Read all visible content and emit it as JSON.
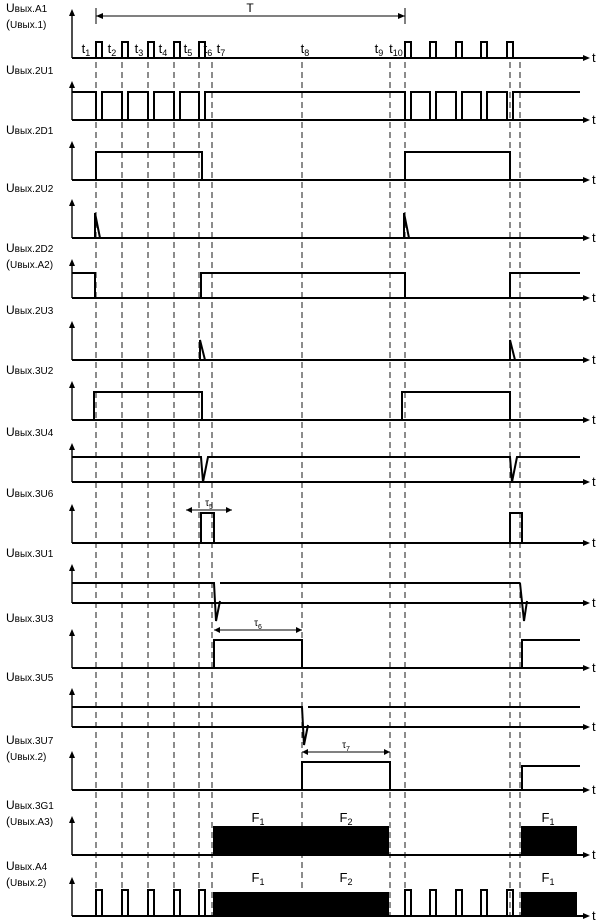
{
  "period_label": "T",
  "time_axis_label": "t",
  "time_marks": [
    {
      "main": "t",
      "sub": "1"
    },
    {
      "main": "t",
      "sub": "2"
    },
    {
      "main": "t",
      "sub": "3"
    },
    {
      "main": "t",
      "sub": "4"
    },
    {
      "main": "t",
      "sub": "5"
    },
    {
      "main": "t",
      "sub": "6"
    },
    {
      "main": "t",
      "sub": "7"
    },
    {
      "main": "t",
      "sub": "8"
    },
    {
      "main": "t",
      "sub": "9"
    },
    {
      "main": "t",
      "sub": "10"
    }
  ],
  "signals": [
    {
      "label": "Uвых.A1",
      "label2": "(Uвых.1)"
    },
    {
      "label": "Uвых.2U1"
    },
    {
      "label": "Uвых.2D1"
    },
    {
      "label": "Uвых.2U2"
    },
    {
      "label": "Uвых.2D2",
      "label2": "(Uвых.A2)"
    },
    {
      "label": "Uвых.2U3"
    },
    {
      "label": "Uвых.3U2"
    },
    {
      "label": "Uвых.3U4"
    },
    {
      "label": "Uвых.3U6"
    },
    {
      "label": "Uвых.3U1"
    },
    {
      "label": "Uвых.3U3"
    },
    {
      "label": "Uвых.3U5"
    },
    {
      "label": "Uвых.3U7",
      "label2": "(Uвых.2)"
    },
    {
      "label": "Uвых.3G1",
      "label2": "(Uвых.A3)"
    },
    {
      "label": "Uвых.A4",
      "label2": "(Uвых.2)"
    }
  ],
  "intervals": {
    "tau5": {
      "main": "τ",
      "sub": "5"
    },
    "tau6": {
      "main": "τ",
      "sub": "6"
    },
    "tau7": {
      "main": "τ",
      "sub": "7"
    }
  },
  "freq_labels": {
    "f1": {
      "main": "F",
      "sub": "1"
    },
    "f2": {
      "main": "F",
      "sub": "2"
    }
  }
}
